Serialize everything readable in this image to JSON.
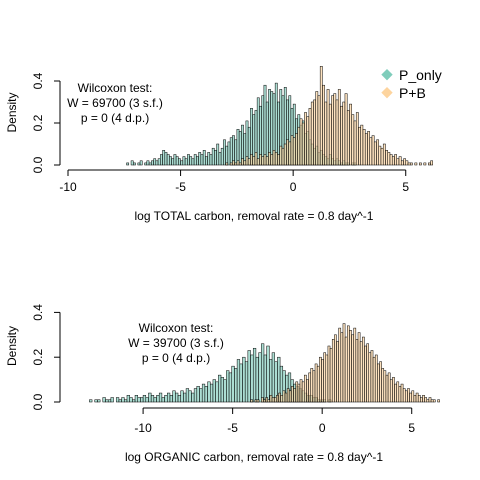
{
  "chart_data": [
    {
      "type": "histogram",
      "xlabel": "log TOTAL carbon, removal rate = 0.8 day^-1",
      "ylabel": "Density",
      "xlim": [
        -10,
        6.3
      ],
      "ylim": [
        0,
        0.5
      ],
      "xticks": [
        -10,
        -5,
        0,
        5
      ],
      "xtick_labels": [
        "-10",
        "-5",
        "0",
        "5"
      ],
      "yticks": [
        0.0,
        0.2,
        0.4
      ],
      "ytick_labels": [
        "0.0",
        "0.2",
        "0.4"
      ],
      "grid": false,
      "legend": {
        "position": "top-right",
        "entries": [
          "P_only",
          "P+B"
        ]
      },
      "annotation": [
        "Wilcoxon test:",
        "W = 69700 (3 s.f.)",
        "p = 0 (4 d.p.)"
      ],
      "series": [
        {
          "name": "P_only",
          "color": "#7fcdbb",
          "bin_start": -7.4,
          "bin_width": 0.1,
          "density": [
            0.01,
            0.0,
            0.02,
            0.01,
            0.0,
            0.01,
            0.02,
            0.0,
            0.01,
            0.02,
            0.01,
            0.02,
            0.03,
            0.02,
            0.03,
            0.05,
            0.07,
            0.06,
            0.05,
            0.04,
            0.03,
            0.05,
            0.04,
            0.03,
            0.02,
            0.04,
            0.03,
            0.05,
            0.04,
            0.03,
            0.05,
            0.04,
            0.06,
            0.05,
            0.07,
            0.04,
            0.06,
            0.05,
            0.08,
            0.07,
            0.1,
            0.06,
            0.08,
            0.12,
            0.09,
            0.11,
            0.13,
            0.14,
            0.12,
            0.17,
            0.16,
            0.19,
            0.15,
            0.21,
            0.18,
            0.27,
            0.24,
            0.26,
            0.32,
            0.28,
            0.33,
            0.38,
            0.3,
            0.36,
            0.35,
            0.34,
            0.39,
            0.3,
            0.36,
            0.33,
            0.37,
            0.31,
            0.33,
            0.27,
            0.29,
            0.22,
            0.24,
            0.19,
            0.21,
            0.15,
            0.16,
            0.12,
            0.1,
            0.08,
            0.09,
            0.06,
            0.07,
            0.05,
            0.04,
            0.03,
            0.05,
            0.03,
            0.02,
            0.03,
            0.02,
            0.01,
            0.02,
            0.01,
            0.01,
            0.0,
            0.01,
            0.01
          ]
        },
        {
          "name": "P+B",
          "color": "#fdd49e",
          "bin_start": -3.0,
          "bin_width": 0.1,
          "density": [
            0.01,
            0.0,
            0.01,
            0.02,
            0.01,
            0.02,
            0.01,
            0.03,
            0.02,
            0.04,
            0.03,
            0.05,
            0.04,
            0.06,
            0.03,
            0.05,
            0.04,
            0.05,
            0.04,
            0.06,
            0.05,
            0.07,
            0.06,
            0.05,
            0.09,
            0.08,
            0.1,
            0.12,
            0.11,
            0.14,
            0.13,
            0.15,
            0.18,
            0.22,
            0.2,
            0.25,
            0.23,
            0.27,
            0.3,
            0.31,
            0.35,
            0.33,
            0.47,
            0.38,
            0.3,
            0.36,
            0.29,
            0.33,
            0.34,
            0.31,
            0.36,
            0.28,
            0.3,
            0.34,
            0.26,
            0.29,
            0.24,
            0.21,
            0.25,
            0.18,
            0.19,
            0.17,
            0.15,
            0.16,
            0.13,
            0.14,
            0.11,
            0.12,
            0.09,
            0.08,
            0.1,
            0.07,
            0.06,
            0.05,
            0.04,
            0.05,
            0.03,
            0.04,
            0.02,
            0.03,
            0.02,
            0.01,
            0.01,
            0.0,
            0.01,
            0.0,
            0.01,
            0.0,
            0.01,
            0.0,
            0.01,
            0.02
          ]
        }
      ]
    },
    {
      "type": "histogram",
      "xlabel": "log ORGANIC carbon, removal rate = 0.8 day^-1",
      "ylabel": "Density",
      "xlim": [
        -13.3,
        6.3
      ],
      "ylim": [
        0,
        0.5
      ],
      "xticks": [
        -10,
        -5,
        0,
        5
      ],
      "xtick_labels": [
        "-10",
        "-5",
        "0",
        "5"
      ],
      "yticks": [
        0.0,
        0.2,
        0.4
      ],
      "ytick_labels": [
        "0.0",
        "0.2",
        "0.4"
      ],
      "grid": false,
      "annotation": [
        "Wilcoxon test:",
        "W = 39700 (3 s.f.)",
        "p = 0 (4 d.p.)"
      ],
      "series": [
        {
          "name": "P_only",
          "color": "#7fcdbb",
          "bin_start": -13.0,
          "bin_width": 0.15,
          "density": [
            0.01,
            0.0,
            0.01,
            0.01,
            0.0,
            0.02,
            0.01,
            0.01,
            0.02,
            0.0,
            0.02,
            0.01,
            0.02,
            0.01,
            0.03,
            0.02,
            0.01,
            0.03,
            0.02,
            0.02,
            0.03,
            0.02,
            0.04,
            0.03,
            0.02,
            0.03,
            0.04,
            0.02,
            0.03,
            0.04,
            0.03,
            0.05,
            0.04,
            0.03,
            0.05,
            0.04,
            0.06,
            0.05,
            0.04,
            0.06,
            0.07,
            0.06,
            0.08,
            0.07,
            0.09,
            0.08,
            0.1,
            0.09,
            0.12,
            0.11,
            0.1,
            0.14,
            0.13,
            0.16,
            0.15,
            0.19,
            0.17,
            0.2,
            0.18,
            0.23,
            0.21,
            0.24,
            0.2,
            0.22,
            0.26,
            0.21,
            0.25,
            0.19,
            0.22,
            0.18,
            0.2,
            0.16,
            0.14,
            0.12,
            0.13,
            0.1,
            0.08,
            0.07,
            0.06,
            0.05,
            0.04,
            0.03,
            0.03,
            0.02,
            0.02,
            0.01,
            0.01,
            0.01,
            0.0,
            0.01
          ]
        },
        {
          "name": "P+B",
          "color": "#fdd49e",
          "bin_start": -4.0,
          "bin_width": 0.12,
          "density": [
            0.01,
            0.0,
            0.01,
            0.01,
            0.0,
            0.02,
            0.01,
            0.02,
            0.01,
            0.03,
            0.02,
            0.02,
            0.03,
            0.04,
            0.03,
            0.05,
            0.04,
            0.06,
            0.05,
            0.07,
            0.06,
            0.09,
            0.08,
            0.1,
            0.09,
            0.12,
            0.1,
            0.13,
            0.15,
            0.14,
            0.17,
            0.16,
            0.2,
            0.19,
            0.22,
            0.21,
            0.25,
            0.24,
            0.28,
            0.3,
            0.27,
            0.33,
            0.31,
            0.35,
            0.29,
            0.34,
            0.32,
            0.3,
            0.33,
            0.28,
            0.31,
            0.27,
            0.29,
            0.25,
            0.26,
            0.22,
            0.23,
            0.2,
            0.21,
            0.17,
            0.18,
            0.15,
            0.14,
            0.12,
            0.13,
            0.1,
            0.11,
            0.08,
            0.09,
            0.07,
            0.08,
            0.06,
            0.05,
            0.06,
            0.04,
            0.05,
            0.03,
            0.04,
            0.03,
            0.02,
            0.03,
            0.02,
            0.01,
            0.02,
            0.01,
            0.01,
            0.0,
            0.01
          ]
        }
      ]
    }
  ]
}
